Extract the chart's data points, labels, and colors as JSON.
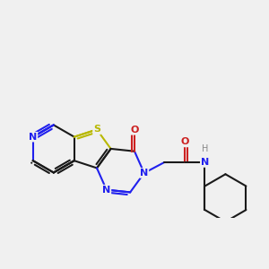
{
  "bg_color": "#f0f0f0",
  "bond_color": "#1a1a1a",
  "N_color": "#2020ee",
  "O_color": "#cc2020",
  "S_color": "#b8b800",
  "H_color": "#888888",
  "lw": 1.5,
  "fs": 8.0,
  "xlim": [
    0.2,
    5.8
  ],
  "ylim": [
    1.0,
    4.5
  ]
}
